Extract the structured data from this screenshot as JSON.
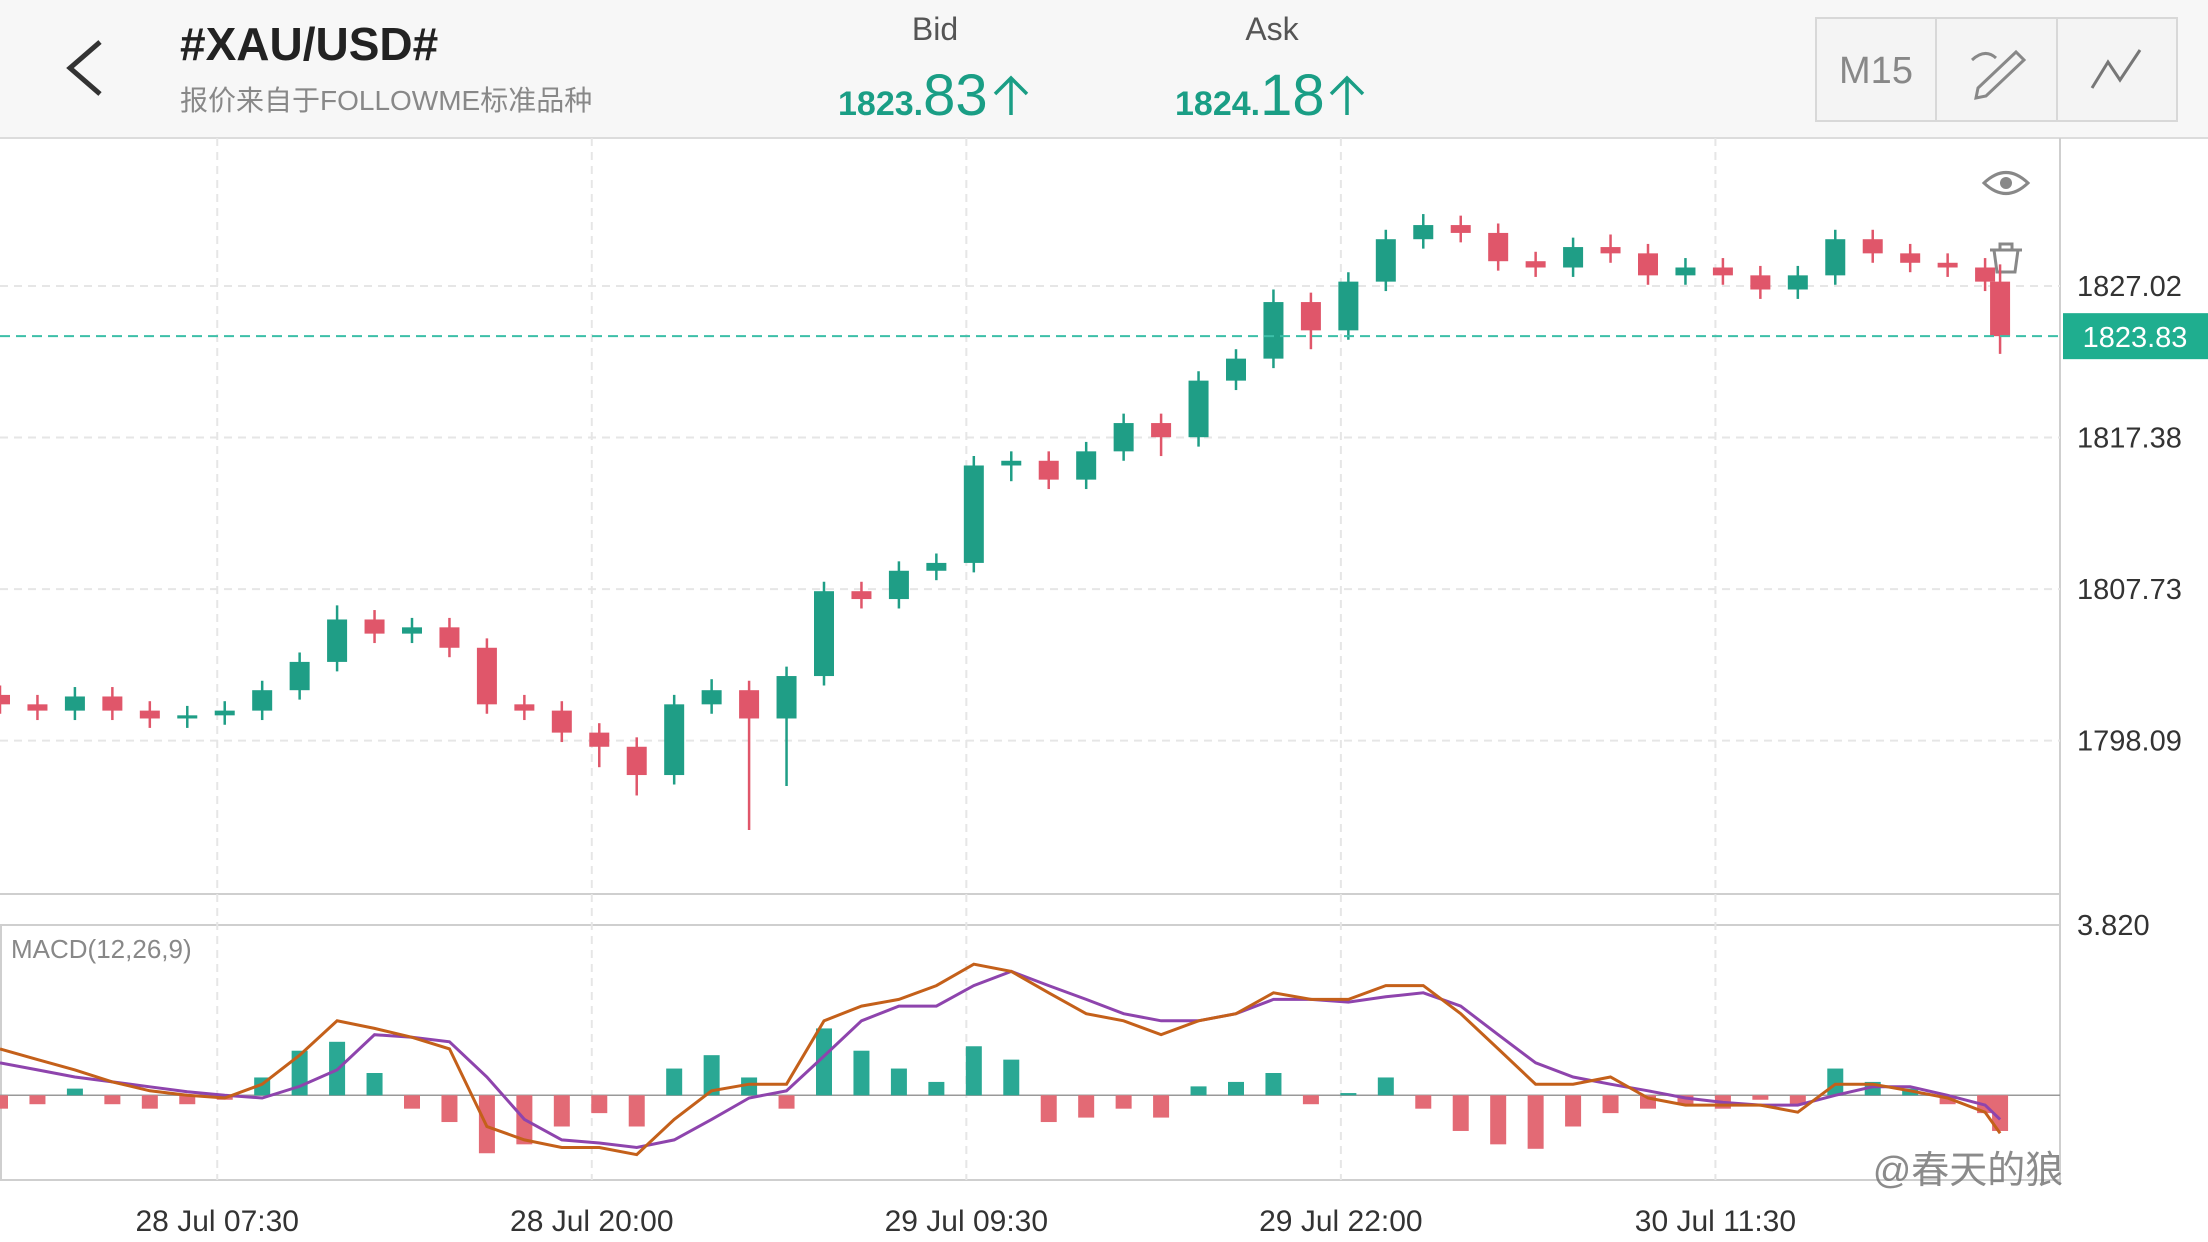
{
  "header": {
    "symbol": "#XAU/USD#",
    "subtitle": "报价来自于FOLLOWME标准品种",
    "bid_label": "Bid",
    "bid_main": "1823.",
    "bid_pips": "83",
    "ask_label": "Ask",
    "ask_main": "1824.",
    "ask_pips": "18",
    "timeframe": "M15"
  },
  "watermark": "@春天的狼",
  "chart_data": [
    {
      "type": "candlestick",
      "x": [
        0,
        5,
        10,
        15,
        20,
        25,
        30,
        35,
        40,
        45,
        50,
        55,
        60,
        65,
        70,
        75,
        80,
        85,
        90,
        95,
        100,
        105,
        110,
        115,
        120,
        125,
        130,
        135,
        140,
        145,
        150,
        155,
        160,
        165,
        170,
        175,
        180,
        185,
        190,
        195,
        200,
        205,
        210,
        215,
        220,
        225,
        230,
        235,
        240,
        245,
        250,
        255,
        260,
        265,
        267
      ],
      "open": [
        1801.0,
        1800.4,
        1800.0,
        1800.9,
        1800.0,
        1799.5,
        1799.7,
        1800.0,
        1801.3,
        1803.1,
        1805.8,
        1804.9,
        1805.3,
        1804.0,
        1800.4,
        1800.0,
        1798.6,
        1797.7,
        1795.9,
        1800.4,
        1801.3,
        1799.5,
        1802.2,
        1807.6,
        1807.1,
        1808.9,
        1809.4,
        1815.6,
        1815.9,
        1814.7,
        1816.5,
        1818.3,
        1817.4,
        1821.0,
        1822.4,
        1826.0,
        1824.2,
        1827.3,
        1830.0,
        1830.9,
        1830.4,
        1828.6,
        1828.2,
        1829.5,
        1829.1,
        1827.7,
        1828.2,
        1827.7,
        1826.8,
        1827.7,
        1830.0,
        1829.1,
        1828.5,
        1828.2,
        1827.3
      ],
      "high": [
        1801.6,
        1801.0,
        1801.5,
        1801.5,
        1800.6,
        1800.3,
        1800.6,
        1801.9,
        1803.7,
        1806.7,
        1806.4,
        1805.9,
        1805.9,
        1804.6,
        1801.0,
        1800.6,
        1799.2,
        1798.3,
        1801.0,
        1802.0,
        1801.9,
        1802.8,
        1808.2,
        1808.2,
        1809.5,
        1810.0,
        1816.2,
        1816.5,
        1816.5,
        1817.1,
        1818.9,
        1818.9,
        1821.6,
        1823.0,
        1826.8,
        1826.6,
        1827.9,
        1830.6,
        1831.6,
        1831.5,
        1831.0,
        1829.2,
        1830.1,
        1830.3,
        1829.7,
        1828.8,
        1828.8,
        1828.3,
        1828.3,
        1830.6,
        1830.6,
        1829.7,
        1829.1,
        1828.8,
        1828.4
      ],
      "low": [
        1799.8,
        1799.4,
        1799.4,
        1799.4,
        1798.9,
        1798.9,
        1799.1,
        1799.4,
        1800.7,
        1802.5,
        1804.3,
        1804.3,
        1803.4,
        1799.8,
        1799.4,
        1798.0,
        1796.4,
        1794.6,
        1795.3,
        1799.8,
        1792.4,
        1795.2,
        1801.6,
        1806.5,
        1806.5,
        1808.3,
        1808.8,
        1814.6,
        1814.1,
        1814.1,
        1815.9,
        1816.2,
        1816.8,
        1820.4,
        1821.8,
        1823.0,
        1823.6,
        1826.7,
        1829.4,
        1829.8,
        1828.0,
        1827.6,
        1827.6,
        1828.5,
        1827.1,
        1827.1,
        1827.1,
        1826.2,
        1826.2,
        1827.1,
        1828.5,
        1827.9,
        1827.6,
        1826.7,
        1822.7
      ],
      "close": [
        1800.4,
        1800.0,
        1800.9,
        1800.0,
        1799.5,
        1799.7,
        1800.0,
        1801.3,
        1803.1,
        1805.8,
        1804.9,
        1805.3,
        1804.0,
        1800.4,
        1800.0,
        1798.6,
        1797.7,
        1795.9,
        1800.4,
        1801.3,
        1799.5,
        1802.2,
        1807.6,
        1807.1,
        1808.9,
        1809.4,
        1815.6,
        1815.9,
        1814.7,
        1816.5,
        1818.3,
        1817.4,
        1821.0,
        1822.4,
        1826.0,
        1824.2,
        1827.3,
        1830.0,
        1830.9,
        1830.4,
        1828.6,
        1828.2,
        1829.5,
        1829.1,
        1827.7,
        1828.2,
        1827.7,
        1826.8,
        1827.7,
        1830.0,
        1829.1,
        1828.5,
        1828.2,
        1827.3,
        1823.83
      ],
      "xlim": [
        0,
        275
      ],
      "xticks": [
        {
          "value": 29,
          "label": "28 Jul 07:30"
        },
        {
          "value": 79,
          "label": "28 Jul 20:00"
        },
        {
          "value": 129,
          "label": "29 Jul 09:30"
        },
        {
          "value": 179,
          "label": "29 Jul 22:00"
        },
        {
          "value": 229,
          "label": "30 Jul 11:30"
        }
      ],
      "ylim": [
        1788.33,
        1836.25
      ],
      "yticks": [
        1798.09,
        1807.73,
        1817.38,
        1827.02
      ],
      "last_price": 1823.83,
      "up_color": "#1f9e86",
      "down_color": "#e0566a",
      "grid": true
    },
    {
      "type": "macd",
      "title": "MACD(12,26,9)",
      "x": [
        0,
        5,
        10,
        15,
        20,
        25,
        30,
        35,
        40,
        45,
        50,
        55,
        60,
        65,
        70,
        75,
        80,
        85,
        90,
        95,
        100,
        105,
        110,
        115,
        120,
        125,
        130,
        135,
        140,
        145,
        150,
        155,
        160,
        165,
        170,
        175,
        180,
        185,
        190,
        195,
        200,
        205,
        210,
        215,
        220,
        225,
        230,
        235,
        240,
        245,
        250,
        255,
        260,
        265,
        267
      ],
      "histogram": [
        -0.3,
        -0.2,
        0.15,
        -0.2,
        -0.3,
        -0.2,
        -0.1,
        0.4,
        1.0,
        1.2,
        0.5,
        -0.3,
        -0.6,
        -1.3,
        -1.1,
        -0.7,
        -0.4,
        -0.7,
        0.6,
        0.9,
        0.4,
        -0.3,
        1.5,
        1.0,
        0.6,
        0.3,
        1.1,
        0.8,
        -0.6,
        -0.5,
        -0.3,
        -0.5,
        0.2,
        0.3,
        0.5,
        -0.2,
        0.05,
        0.4,
        -0.3,
        -0.8,
        -1.1,
        -1.2,
        -0.7,
        -0.4,
        -0.3,
        -0.2,
        -0.3,
        -0.1,
        -0.2,
        0.6,
        0.3,
        0.15,
        -0.2,
        -0.4,
        -0.8
      ],
      "macd": [
        1.04,
        0.8,
        0.57,
        0.3,
        0.1,
        0.0,
        -0.06,
        0.25,
        0.9,
        1.67,
        1.5,
        1.3,
        1.04,
        -0.7,
        -1.0,
        -1.17,
        -1.17,
        -1.33,
        -0.54,
        0.1,
        0.25,
        0.25,
        1.67,
        2.0,
        2.15,
        2.46,
        2.94,
        2.78,
        2.3,
        1.83,
        1.67,
        1.36,
        1.67,
        1.83,
        2.3,
        2.15,
        2.15,
        2.46,
        2.46,
        1.83,
        1.04,
        0.25,
        0.25,
        0.41,
        -0.06,
        -0.22,
        -0.22,
        -0.22,
        -0.38,
        0.25,
        0.25,
        0.1,
        -0.06,
        -0.38,
        -0.85
      ],
      "signal": [
        0.73,
        0.57,
        0.41,
        0.3,
        0.19,
        0.08,
        0,
        -0.06,
        0.2,
        0.57,
        1.36,
        1.3,
        1.2,
        0.41,
        -0.54,
        -1.0,
        -1.07,
        -1.17,
        -1.0,
        -0.54,
        -0.06,
        0.1,
        0.88,
        1.67,
        2.0,
        2.0,
        2.46,
        2.78,
        2.46,
        2.15,
        1.83,
        1.67,
        1.67,
        1.83,
        2.15,
        2.15,
        2.09,
        2.21,
        2.3,
        2.0,
        1.36,
        0.73,
        0.41,
        0.25,
        0.1,
        -0.06,
        -0.16,
        -0.22,
        -0.22,
        0,
        0.19,
        0.19,
        0,
        -0.22,
        -0.54
      ],
      "xlim": [
        0,
        275
      ],
      "ylim": [
        -1.9,
        3.82
      ],
      "yticks": [
        {
          "value": 3.82,
          "label": "3.820"
        }
      ],
      "macd_color": "#c4601a",
      "signal_color": "#8e44ad",
      "up_color": "#2aa894",
      "down_color": "#e36a75"
    }
  ]
}
